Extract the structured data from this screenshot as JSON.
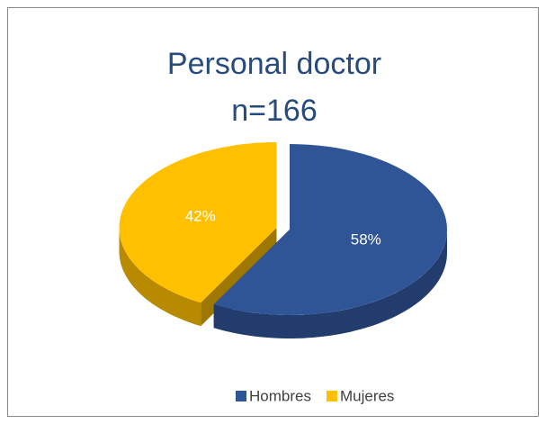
{
  "chart_data": {
    "type": "pie",
    "title": "Personal doctor",
    "subtitle": "n=166",
    "categories": [
      "Hombres",
      "Mujeres"
    ],
    "values": [
      58,
      42
    ],
    "value_labels": [
      "58%",
      "42%"
    ],
    "colors": [
      "#2f5597",
      "#ffc000"
    ],
    "legend": "bottom"
  }
}
